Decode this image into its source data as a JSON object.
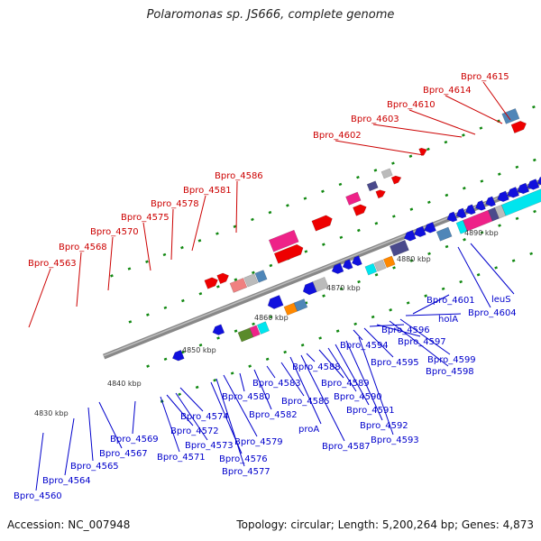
{
  "title": "Polaromonas sp. JS666, complete genome",
  "footer": {
    "accession": "Accession: NC_007948",
    "summary": "Topology: circular; Length: 5,200,264 bp; Genes: 4,873"
  },
  "scale_ticks": [
    "4830 kbp",
    "4840 kbp",
    "4850 kbp",
    "4860 kbp",
    "4870 kbp",
    "4880 kbp",
    "4890 kbp"
  ],
  "upper_gene_labels": [
    "Bpro_4563",
    "Bpro_4568",
    "Bpro_4570",
    "Bpro_4575",
    "Bpro_4578",
    "Bpro_4581",
    "Bpro_4586",
    "Bpro_4602",
    "Bpro_4603",
    "Bpro_4610",
    "Bpro_4614",
    "Bpro_4615"
  ],
  "lower_gene_labels": [
    "Bpro_4560",
    "Bpro_4564",
    "Bpro_4565",
    "Bpro_4567",
    "Bpro_4569",
    "Bpro_4571",
    "Bpro_4572",
    "Bpro_4573",
    "Bpro_4574",
    "Bpro_4576",
    "Bpro_4577",
    "Bpro_4579",
    "Bpro_4580",
    "Bpro_4582",
    "Bpro_4583",
    "Bpro_4585",
    "proA",
    "Bpro_4587",
    "Bpro_4588",
    "Bpro_4589",
    "Bpro_4590",
    "Bpro_4591",
    "Bpro_4592",
    "Bpro_4593",
    "Bpro_4594",
    "Bpro_4595",
    "Bpro_4596",
    "Bpro_4597",
    "Bpro_4598",
    "Bpro_4599",
    "holA",
    "Bpro_4601",
    "leuS",
    "Bpro_4604"
  ],
  "colors": {
    "forward_gene": "#ee0000",
    "reverse_gene": "#1010dd",
    "magenta": "#ee2288",
    "cyan": "#00e5ee",
    "slate": "#4a4a8c",
    "steel": "#4f86b8",
    "green": "#44bb33",
    "olive": "#5a8a2a",
    "orange": "#ff8800",
    "pink": "#f08080",
    "gray": "#bbbbbb",
    "dash": "#118811",
    "backbone": "#888888"
  }
}
